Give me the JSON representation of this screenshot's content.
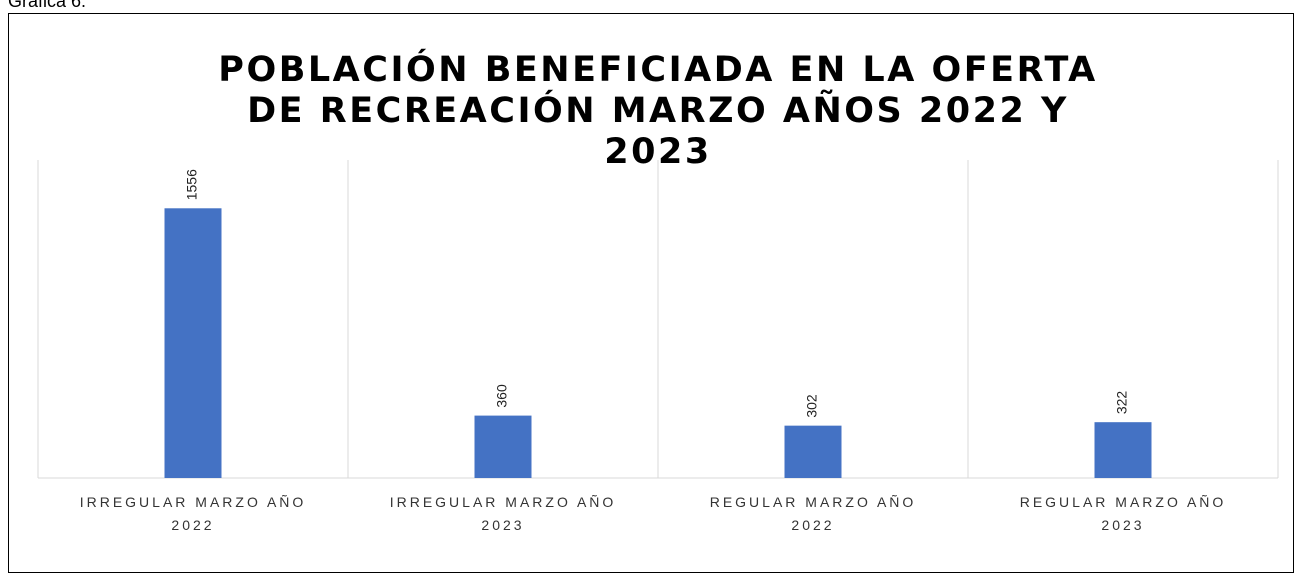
{
  "caption": "Gráfica 6.",
  "chart_data": {
    "type": "bar",
    "title": "POBLACIÓN BENEFICIADA EN LA OFERTA DE RECREACIÓN MARZO AÑOS 2022 Y 2023",
    "categories": [
      "IRREGULAR MARZO AÑO 2022",
      "IRREGULAR MARZO AÑO 2023",
      "REGULAR MARZO AÑO 2022",
      "REGULAR MARZO AÑO 2023"
    ],
    "values": [
      1556,
      360,
      302,
      322
    ],
    "color": "#4472c4",
    "ylim": [
      0,
      1800
    ]
  }
}
